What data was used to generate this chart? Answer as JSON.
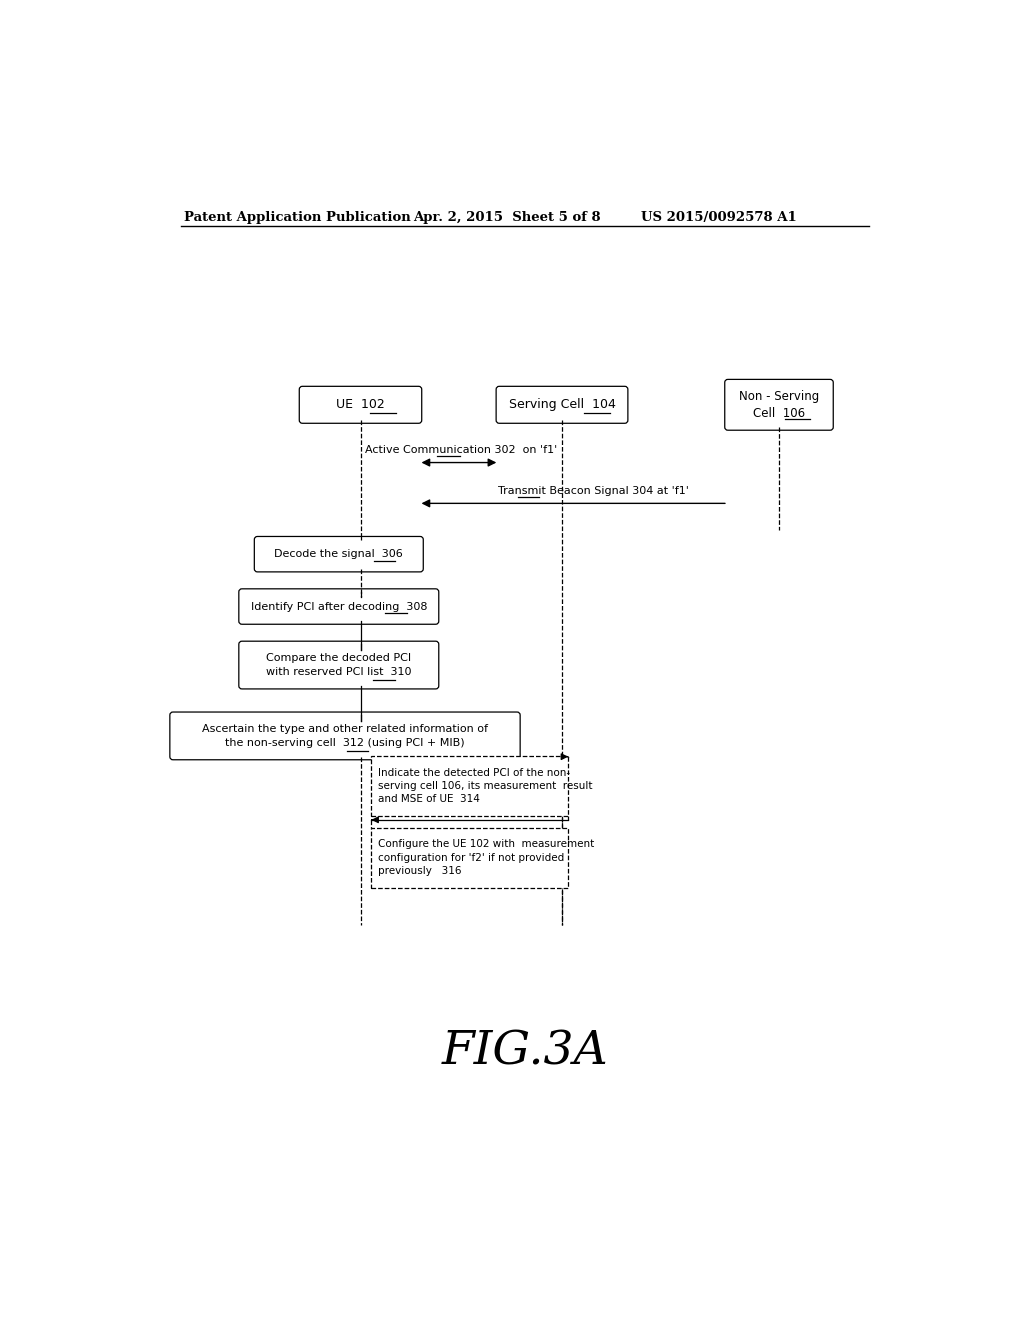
{
  "bg_color": "#ffffff",
  "header_left": "Patent Application Publication",
  "header_mid": "Apr. 2, 2015  Sheet 5 of 8",
  "header_right": "US 2015/0092578 A1",
  "figure_label": "FIG.3A",
  "ue_label": "UE  102",
  "sc_label": "Serving Cell  104",
  "nsc_label": "Non - Serving\nCell  106",
  "comm_arrow_label": "Active Communication 302  on 'f1'",
  "beacon_arrow_label": "Transmit Beacon Signal 304 at 'f1'",
  "decode_label": "Decode the signal  306",
  "identify_label": "Identify PCI after decoding  308",
  "compare_label": "Compare the decoded PCI\nwith reserved PCI list  310",
  "ascertain_label": "Ascertain the type and other related information of\nthe non-serving cell  312 (using PCI + MIB)",
  "indicate_label": "Indicate the detected PCI of the non-\nserving cell 106, its measurement  result\nand MSE of UE  314",
  "configure_label": "Configure the UE 102 with  measurement\nconfiguration for 'f2' if not provided\npreviously   316"
}
